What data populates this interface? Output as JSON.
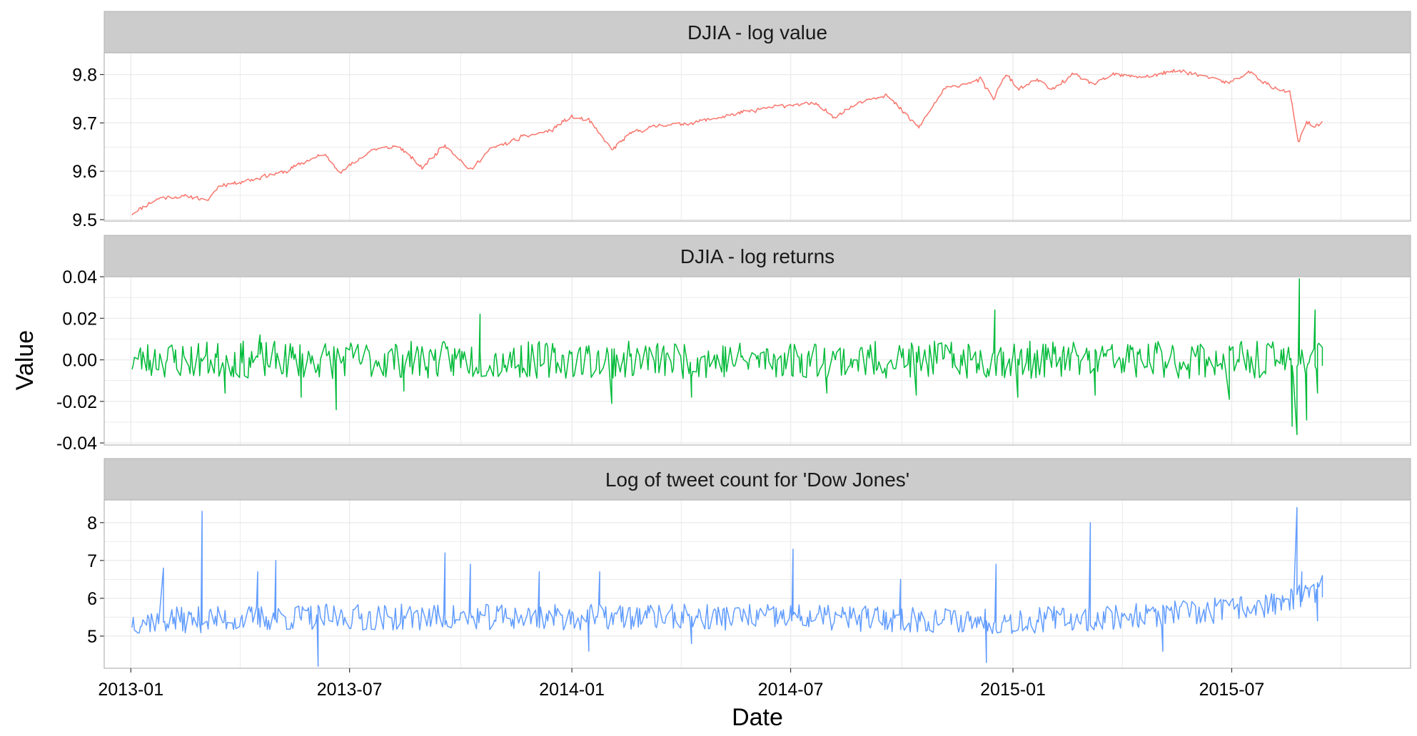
{
  "colors": {
    "strip_bg": "#cccccc",
    "panel_border": "#b3b3b3",
    "grid": "#ebebeb",
    "series": [
      "#f8766d",
      "#00ba38",
      "#619cff"
    ]
  },
  "chart_data": {
    "type": "line",
    "facet_layout": "vertical",
    "xlabel": "Date",
    "ylabel": "Value",
    "x_ticks": [
      "2013-01",
      "2013-07",
      "2014-01",
      "2014-07",
      "2015-01",
      "2015-07"
    ],
    "x_range": [
      "2012-12-10",
      "2015-11-26"
    ],
    "panels": [
      {
        "title": "DJIA - log value",
        "ylim": [
          9.497,
          9.845
        ],
        "yticks": [
          9.5,
          9.6,
          9.7,
          9.8
        ],
        "ytick_labels": [
          "9.5",
          "9.6",
          "9.7",
          "9.8"
        ],
        "noise": 0.005,
        "noise_freq": 2,
        "seed": 11,
        "spikes": [],
        "points": [
          [
            "2013-01-02",
            9.512
          ],
          [
            "2013-01-10",
            9.525
          ],
          [
            "2013-01-25",
            9.545
          ],
          [
            "2013-02-20",
            9.548
          ],
          [
            "2013-03-05",
            9.538
          ],
          [
            "2013-03-15",
            9.57
          ],
          [
            "2013-04-15",
            9.585
          ],
          [
            "2013-05-10",
            9.6
          ],
          [
            "2013-05-25",
            9.62
          ],
          [
            "2013-06-10",
            9.635
          ],
          [
            "2013-06-24",
            9.598
          ],
          [
            "2013-07-20",
            9.645
          ],
          [
            "2013-08-10",
            9.652
          ],
          [
            "2013-08-30",
            9.608
          ],
          [
            "2013-09-18",
            9.655
          ],
          [
            "2013-10-09",
            9.602
          ],
          [
            "2013-10-25",
            9.645
          ],
          [
            "2013-11-20",
            9.67
          ],
          [
            "2013-12-15",
            9.685
          ],
          [
            "2013-12-31",
            9.712
          ],
          [
            "2014-01-15",
            9.705
          ],
          [
            "2014-02-03",
            9.645
          ],
          [
            "2014-02-20",
            9.68
          ],
          [
            "2014-03-15",
            9.695
          ],
          [
            "2014-04-10",
            9.7
          ],
          [
            "2014-05-10",
            9.715
          ],
          [
            "2014-06-20",
            9.735
          ],
          [
            "2014-07-20",
            9.74
          ],
          [
            "2014-08-07",
            9.712
          ],
          [
            "2014-08-28",
            9.745
          ],
          [
            "2014-09-18",
            9.758
          ],
          [
            "2014-10-15",
            9.69
          ],
          [
            "2014-11-05",
            9.77
          ],
          [
            "2014-12-05",
            9.79
          ],
          [
            "2014-12-16",
            9.75
          ],
          [
            "2014-12-26",
            9.8
          ],
          [
            "2015-01-06",
            9.77
          ],
          [
            "2015-01-22",
            9.79
          ],
          [
            "2015-02-02",
            9.768
          ],
          [
            "2015-02-20",
            9.8
          ],
          [
            "2015-03-10",
            9.78
          ],
          [
            "2015-03-25",
            9.8
          ],
          [
            "2015-04-20",
            9.795
          ],
          [
            "2015-05-19",
            9.808
          ],
          [
            "2015-06-10",
            9.795
          ],
          [
            "2015-06-29",
            9.783
          ],
          [
            "2015-07-16",
            9.805
          ],
          [
            "2015-08-05",
            9.77
          ],
          [
            "2015-08-18",
            9.765
          ],
          [
            "2015-08-25",
            9.66
          ],
          [
            "2015-09-01",
            9.7
          ],
          [
            "2015-09-08",
            9.692
          ],
          [
            "2015-09-14",
            9.705
          ]
        ]
      },
      {
        "title": "DJIA - log returns",
        "ylim": [
          -0.041,
          0.04
        ],
        "yticks": [
          -0.04,
          -0.02,
          0.0,
          0.02,
          0.04
        ],
        "ytick_labels": [
          "-0.04",
          "-0.02",
          "0.00",
          "0.02",
          "0.04"
        ],
        "noise": 0.009,
        "noise_freq": 1,
        "seed": 23,
        "spikes": [
          [
            "2013-03-20",
            -0.016
          ],
          [
            "2013-04-18",
            0.012
          ],
          [
            "2013-05-22",
            -0.018
          ],
          [
            "2013-06-20",
            -0.024
          ],
          [
            "2013-08-15",
            -0.015
          ],
          [
            "2013-10-17",
            0.022
          ],
          [
            "2014-02-03",
            -0.021
          ],
          [
            "2014-04-10",
            -0.018
          ],
          [
            "2014-07-31",
            -0.016
          ],
          [
            "2014-10-13",
            -0.017
          ],
          [
            "2014-12-17",
            0.024
          ],
          [
            "2015-01-05",
            -0.018
          ],
          [
            "2015-03-10",
            -0.017
          ],
          [
            "2015-06-29",
            -0.019
          ],
          [
            "2015-08-20",
            -0.032
          ],
          [
            "2015-08-24",
            -0.036
          ],
          [
            "2015-08-26",
            0.039
          ],
          [
            "2015-09-01",
            -0.029
          ],
          [
            "2015-09-08",
            0.024
          ],
          [
            "2015-09-10",
            -0.016
          ],
          [
            "2015-09-14",
            0.006
          ]
        ],
        "points": [
          [
            "2013-01-02",
            0.0
          ],
          [
            "2015-09-14",
            0.0
          ]
        ]
      },
      {
        "title": "Log of tweet count for 'Dow Jones'",
        "ylim": [
          4.15,
          8.6
        ],
        "yticks": [
          5,
          6,
          7,
          8
        ],
        "ytick_labels": [
          "5",
          "6",
          "7",
          "8"
        ],
        "noise": 0.35,
        "noise_freq": 1,
        "seed": 37,
        "spikes": [
          [
            "2013-01-28",
            6.8
          ],
          [
            "2013-03-01",
            8.3
          ],
          [
            "2013-04-16",
            6.7
          ],
          [
            "2013-05-01",
            7.0
          ],
          [
            "2013-06-05",
            4.2
          ],
          [
            "2013-09-18",
            7.2
          ],
          [
            "2013-10-09",
            6.9
          ],
          [
            "2013-12-05",
            6.7
          ],
          [
            "2014-01-15",
            4.6
          ],
          [
            "2014-01-24",
            6.7
          ],
          [
            "2014-04-10",
            4.8
          ],
          [
            "2014-07-03",
            7.3
          ],
          [
            "2014-09-30",
            6.5
          ],
          [
            "2014-12-10",
            4.3
          ],
          [
            "2014-12-18",
            6.9
          ],
          [
            "2015-03-06",
            8.0
          ],
          [
            "2015-05-05",
            4.6
          ],
          [
            "2015-08-24",
            8.4
          ],
          [
            "2015-08-28",
            6.7
          ],
          [
            "2015-09-10",
            5.4
          ],
          [
            "2015-09-14",
            6.6
          ]
        ],
        "points": [
          [
            "2013-01-02",
            5.4
          ],
          [
            "2013-06-01",
            5.5
          ],
          [
            "2014-01-01",
            5.5
          ],
          [
            "2014-07-01",
            5.5
          ],
          [
            "2015-01-01",
            5.4
          ],
          [
            "2015-06-01",
            5.6
          ],
          [
            "2015-08-15",
            5.9
          ],
          [
            "2015-09-14",
            6.2
          ]
        ]
      }
    ]
  }
}
